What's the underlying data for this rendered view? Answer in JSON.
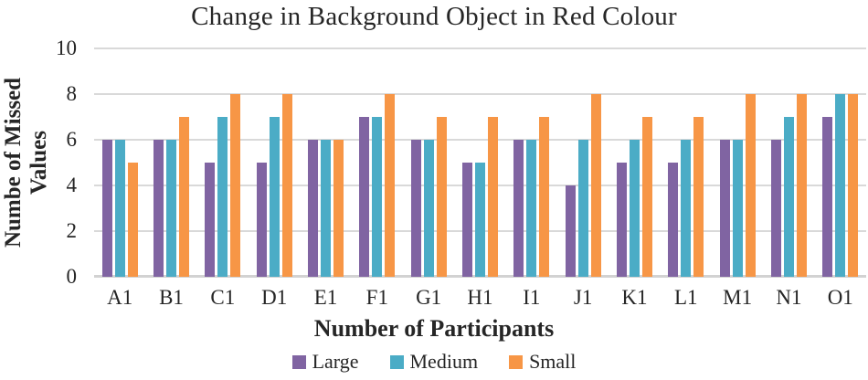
{
  "chart_data": {
    "type": "bar",
    "title": "Change in Background Object in Red Colour",
    "categories": [
      "A1",
      "B1",
      "C1",
      "D1",
      "E1",
      "F1",
      "G1",
      "H1",
      "I1",
      "J1",
      "K1",
      "L1",
      "M1",
      "N1",
      "O1"
    ],
    "series": [
      {
        "name": "Large",
        "color": "#8064A2",
        "values": [
          6,
          6,
          5,
          5,
          6,
          7,
          6,
          5,
          6,
          4,
          5,
          5,
          6,
          6,
          7
        ]
      },
      {
        "name": "Medium",
        "color": "#4BACC6",
        "values": [
          6,
          6,
          7,
          7,
          6,
          7,
          6,
          5,
          6,
          6,
          6,
          6,
          6,
          7,
          8
        ]
      },
      {
        "name": "Small",
        "color": "#F79646",
        "values": [
          5,
          7,
          8,
          8,
          6,
          8,
          7,
          7,
          7,
          8,
          7,
          7,
          8,
          8,
          8
        ]
      }
    ],
    "xlabel": "Number of Participants",
    "ylabel": "Numbe of Missed Values",
    "ylabel_lines": [
      "Numbe of Missed",
      "Values"
    ],
    "ylim": [
      0,
      10
    ],
    "yticks": [
      0,
      2,
      4,
      6,
      8,
      10
    ],
    "grid": true,
    "legend_position": "bottom",
    "colors": {
      "gridline": "#D9D9D9",
      "baseline": "#D2D2D2",
      "text": "#262626"
    }
  }
}
